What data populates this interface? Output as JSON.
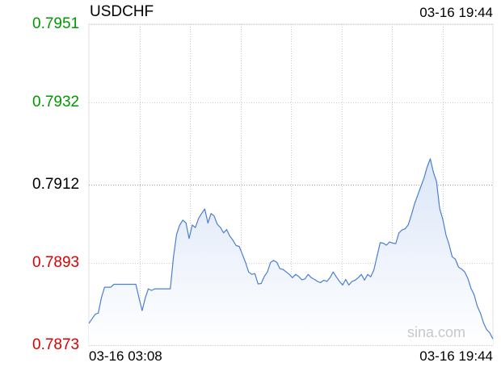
{
  "header": {
    "symbol": "USDCHF",
    "timestamp": "03-16 19:44"
  },
  "watermark": "sina.com",
  "colors": {
    "up": "#009900",
    "down": "#dd0000",
    "neutral": "#000000",
    "line": "#4a7fd0",
    "area_top": "#dbe6f8",
    "area_bottom": "#ffffff",
    "grid": "#cccccc"
  },
  "chart_data": {
    "type": "area",
    "title": "USDCHF",
    "reference_value": 0.7912,
    "ylim": [
      0.7873,
      0.7951
    ],
    "yticks": [
      {
        "label": "0.7951",
        "value": 0.7951,
        "tone": "up"
      },
      {
        "label": "0.7932",
        "value": 0.7932,
        "tone": "up"
      },
      {
        "label": "0.7912",
        "value": 0.7912,
        "tone": "neutral"
      },
      {
        "label": "0.7893",
        "value": 0.7893,
        "tone": "down"
      },
      {
        "label": "0.7873",
        "value": 0.7873,
        "tone": "down"
      }
    ],
    "xticks": [
      {
        "label": "03-16 03:08",
        "position": "start"
      },
      {
        "label": "03-16 19:44",
        "position": "end"
      }
    ],
    "grid": true,
    "series": [
      {
        "values": [
          0.78783,
          0.78794,
          0.78805,
          0.78808,
          0.78845,
          0.78871,
          0.78871,
          0.78871,
          0.78878,
          0.78878,
          0.78878,
          0.78878,
          0.78878,
          0.78878,
          0.78878,
          0.78878,
          0.78845,
          0.78814,
          0.78845,
          0.78867,
          0.78863,
          0.78867,
          0.78867,
          0.78867,
          0.78867,
          0.78867,
          0.78867,
          0.78945,
          0.78999,
          0.79022,
          0.79034,
          0.79027,
          0.78989,
          0.79022,
          0.79016,
          0.79038,
          0.7905,
          0.79061,
          0.79027,
          0.7905,
          0.79044,
          0.79024,
          0.79016,
          0.79003,
          0.79011,
          0.78995,
          0.78985,
          0.78972,
          0.7897,
          0.78951,
          0.78931,
          0.78908,
          0.78902,
          0.78904,
          0.78879,
          0.7888,
          0.78897,
          0.78908,
          0.78931,
          0.78936,
          0.78931,
          0.78916,
          0.78914,
          0.78908,
          0.78902,
          0.78894,
          0.78902,
          0.78897,
          0.78889,
          0.78891,
          0.78902,
          0.78894,
          0.7889,
          0.78885,
          0.78882,
          0.78888,
          0.78885,
          0.78894,
          0.78908,
          0.78896,
          0.78885,
          0.78876,
          0.7889,
          0.78876,
          0.78885,
          0.78888,
          0.78894,
          0.78902,
          0.78888,
          0.78902,
          0.78896,
          0.78913,
          0.78946,
          0.78979,
          0.78978,
          0.78973,
          0.78981,
          0.78978,
          0.78977,
          0.79003,
          0.7901,
          0.79013,
          0.79023,
          0.79047,
          0.79074,
          0.79095,
          0.79116,
          0.79136,
          0.79163,
          0.79183,
          0.7915,
          0.79128,
          0.79062,
          0.79036,
          0.78998,
          0.78975,
          0.78945,
          0.78939,
          0.7892,
          0.78915,
          0.78908,
          0.78892,
          0.78868,
          0.78853,
          0.78825,
          0.78808,
          0.78784,
          0.78768,
          0.7876,
          0.78745
        ]
      }
    ]
  }
}
